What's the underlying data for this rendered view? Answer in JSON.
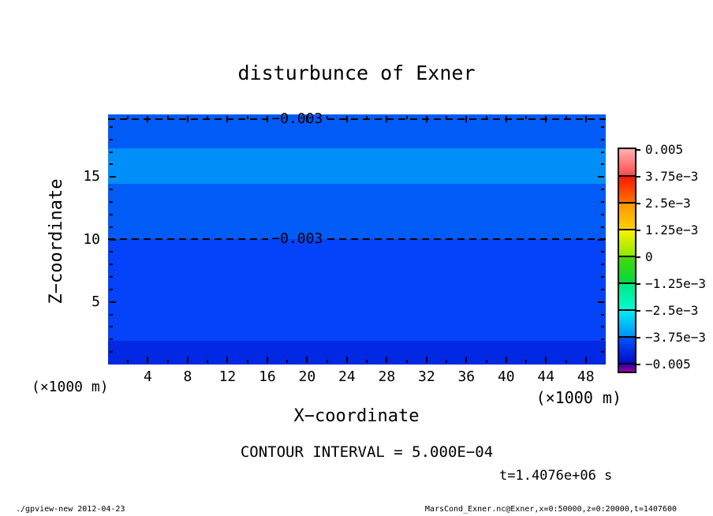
{
  "title": "disturbunce of Exner",
  "axes": {
    "x_title": "X−coordinate",
    "z_title": "Z−coordinate",
    "x_unit_left": "(×1000 m)",
    "x_unit_right": "(×1000 m)"
  },
  "annotations": {
    "contour_interval_text": "CONTOUR INTERVAL = 5.000E−04",
    "time_text": "t=1.4076e+06 s"
  },
  "footer": {
    "left": "./gpview-new  2012-04-23",
    "right": "MarsCond_Exner.nc@Exner,x=0:50000,z=0:20000,t=1407600"
  },
  "chart_data": {
    "type": "heatmap",
    "subtype": "filled-contour",
    "title": "disturbunce of Exner",
    "xlabel": "X-coordinate (×1000 m)",
    "ylabel": "Z-coordinate (×1000 m)",
    "xlim": [
      0,
      50
    ],
    "ylim": [
      0,
      20
    ],
    "x_major_ticks": [
      4,
      8,
      12,
      16,
      20,
      24,
      28,
      32,
      36,
      40,
      44,
      48
    ],
    "x_minor_ticks": [
      2,
      6,
      10,
      14,
      18,
      22,
      26,
      30,
      34,
      38,
      42,
      46
    ],
    "y_major_ticks": [
      5,
      10,
      15
    ],
    "y_minor_ticks": [
      1,
      2,
      3,
      4,
      6,
      7,
      8,
      9,
      11,
      12,
      13,
      14,
      16,
      17,
      18,
      19
    ],
    "grid": false,
    "contour_interval": 0.0005,
    "time_seconds": 1407600,
    "bands": [
      {
        "z_from": 17.3,
        "z_to": 20.0,
        "value_range": "-3.0e-3 to -2.5e-3",
        "color": "#005bf7"
      },
      {
        "z_from": 14.45,
        "z_to": 17.3,
        "value_range": "-2.5e-3 to -2.0e-3",
        "color": "#008ef8"
      },
      {
        "z_from": 10.05,
        "z_to": 14.45,
        "value_range": "-3.0e-3 to -2.5e-3",
        "color": "#005bf7"
      },
      {
        "z_from": 1.9,
        "z_to": 10.05,
        "value_range": "-3.5e-3 to -3.0e-3",
        "color": "#0443fa"
      },
      {
        "z_from": 0.0,
        "z_to": 1.9,
        "value_range": "-4.0e-3 to -3.5e-3",
        "color": "#0128e2"
      }
    ],
    "contour_lines": [
      {
        "z": 19.65,
        "label": "−0.003",
        "label_x": 19,
        "style": "dashed"
      },
      {
        "z": 10.05,
        "label": "−0.003",
        "label_x": 19,
        "style": "dashed"
      }
    ],
    "colorbar": {
      "min": -0.005,
      "max": 0.005,
      "position": "right",
      "labels": [
        "0.005",
        "3.75e−3",
        "2.5e−3",
        "1.25e−3",
        "0",
        "−1.25e−3",
        "−2.5e−3",
        "−3.75e−3",
        "−0.005"
      ],
      "segments": [
        {
          "level_label": "0.005",
          "from": "#ffafaf",
          "to": "#ff4a4a"
        },
        {
          "level_label": "3.75e−3",
          "from": "#ff1400",
          "to": "#ff7300"
        },
        {
          "level_label": "2.5e−3",
          "from": "#ff9300",
          "to": "#ffd200"
        },
        {
          "level_label": "1.25e−3",
          "from": "#fdf100",
          "to": "#8fe800"
        },
        {
          "level_label": "0",
          "from": "#49d900",
          "to": "#00d845"
        },
        {
          "level_label": "−1.25e−3",
          "from": "#00e87e",
          "to": "#00fbd6"
        },
        {
          "level_label": "−2.5e−3",
          "from": "#00eef6",
          "to": "#0090f6"
        },
        {
          "level_label": "−3.75e−3",
          "from": "#0056ff",
          "to": "#0009c8"
        },
        {
          "level_label": "−0.005",
          "from": "#2500a5",
          "to": "#9900a2"
        }
      ]
    }
  }
}
